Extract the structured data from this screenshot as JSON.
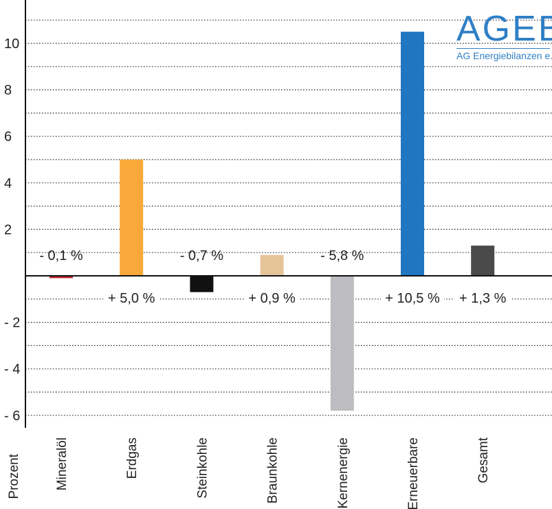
{
  "logo": {
    "name": "AGEB",
    "subtitle": "AG Energiebilanzen e.V."
  },
  "chart_data": {
    "type": "bar",
    "ylabel": "Prozent",
    "ylim": [
      -6.5,
      11.5
    ],
    "yticks": [
      10,
      8,
      6,
      4,
      2,
      -2,
      -4,
      -6
    ],
    "ytick_labels": [
      "10",
      "8",
      "6",
      "4",
      "2",
      "- 2",
      "- 4",
      "- 6"
    ],
    "grid": true,
    "categories": [
      "Mineralöl",
      "Erdgas",
      "Steinkohle",
      "Braunkohle",
      "Kernenergie",
      "Erneuerbare",
      "Gesamt"
    ],
    "values": [
      -0.1,
      5.0,
      -0.7,
      0.9,
      -5.8,
      10.5,
      1.3
    ],
    "data_labels": [
      "- 0,1 %",
      "+ 5,0 %",
      "- 0,7 %",
      "+ 0,9 %",
      "- 5,8 %",
      "+ 10,5 %",
      "+ 1,3 %"
    ],
    "colors": [
      "#c0272d",
      "#f8a93a",
      "#111111",
      "#e6c49a",
      "#bdbcc0",
      "#2176c1",
      "#4a4a4a"
    ]
  }
}
